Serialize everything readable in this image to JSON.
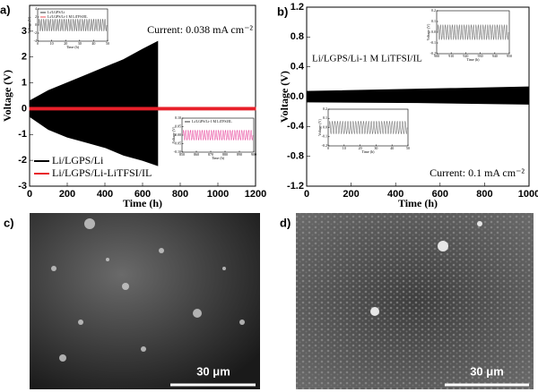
{
  "chart_data": [
    {
      "type": "band",
      "panel": "a)",
      "xlabel": "Time (h)",
      "ylabel": "Voltage (V)",
      "xlim": [
        0,
        1200
      ],
      "ylim": [
        -3,
        4
      ],
      "xticks": [
        0,
        200,
        400,
        600,
        800,
        1000,
        1200
      ],
      "yticks": [
        -3,
        -2,
        -1,
        0,
        1,
        2,
        3
      ],
      "annotation": "Current: 0.038 mA cm⁻²",
      "legend": "lower left",
      "series": [
        {
          "name": "Li/LGPS/Li",
          "color": "#000000",
          "x": [
            0,
            100,
            200,
            300,
            400,
            500,
            600,
            680
          ],
          "values": [
            0.3,
            0.7,
            1.0,
            1.3,
            1.6,
            1.9,
            2.3,
            2.6
          ],
          "lower": [
            -0.3,
            -0.8,
            -1.1,
            -1.3,
            -1.5,
            -1.8,
            -2.0,
            -2.2
          ]
        },
        {
          "name": "Li/LGPS/Li-LiTFSI/IL",
          "color": "#e8202a",
          "x": [
            0,
            1200
          ],
          "values": [
            0.05,
            0.05
          ],
          "lower": [
            -0.05,
            -0.05
          ]
        }
      ],
      "insets": [
        {
          "labels": [
            "Li/LGPS/Li",
            "Li/LGPS/Li-1 M LiTFSI/IL"
          ],
          "xlabel": "Time (h)",
          "ylabel": "Voltage (V)",
          "xlim": [
            0,
            50
          ],
          "xticks": [
            0,
            10,
            20,
            30,
            40,
            50
          ],
          "ylim": [
            -4,
            4
          ],
          "yticks": [
            -4,
            -2,
            0,
            2,
            4
          ],
          "amplitude": 1.5,
          "color": "#555555"
        },
        {
          "labels": [
            "Li/LGPS/Li-1 M LiTFSI/IL"
          ],
          "xlabel": "Time (h)",
          "ylabel": "Voltage (V)",
          "xlim": [
            850,
            900
          ],
          "xticks": [
            850,
            860,
            870,
            880,
            890,
            900
          ],
          "ylim": [
            -0.1,
            0.1
          ],
          "yticks": [
            {
              "value": -0.1,
              "label": "-0.10"
            },
            -0.05,
            {
              "value": 0,
              "label": "0.00"
            },
            0.05,
            {
              "value": 0.1,
              "label": "0.10"
            }
          ],
          "amplitude": 0.03,
          "color": "#e8409a"
        }
      ]
    },
    {
      "type": "band",
      "panel": "b)",
      "xlabel": "Time (h)",
      "ylabel": "Voltage (V)",
      "xlim": [
        0,
        1000
      ],
      "ylim": [
        -1.2,
        1.2
      ],
      "xticks": [
        0,
        200,
        400,
        600,
        800,
        1000
      ],
      "yticks": [
        {
          "value": -1.2,
          "label": "-1.2"
        },
        {
          "value": -0.8,
          "label": "-0.8"
        },
        {
          "value": -0.4,
          "label": "-0.4"
        },
        {
          "value": 0,
          "label": "0.0"
        },
        0.4,
        0.8,
        1.2
      ],
      "annotation": "Current: 0.1 mA cm⁻²",
      "note": "Li/LGPS/Li-1 M LiTFSI/IL",
      "series": [
        {
          "name": "",
          "color": "#000000",
          "x": [
            0,
            500,
            1000
          ],
          "values": [
            0.07,
            0.1,
            0.13
          ],
          "lower": [
            -0.07,
            -0.08,
            -0.1
          ]
        }
      ],
      "insets": [
        {
          "labels": [],
          "xlabel": "Time (h)",
          "ylabel": "Voltage (V)",
          "xlim": [
            900,
            950
          ],
          "xticks": [
            900,
            910,
            920,
            930,
            940,
            950
          ],
          "ylim": [
            -0.2,
            0.2
          ],
          "yticks": [
            -0.2,
            -0.1,
            {
              "value": 0,
              "label": "0.0"
            },
            0.1,
            0.2
          ],
          "amplitude": 0.07,
          "color": "#666666"
        },
        {
          "labels": [],
          "xlabel": "Time (h)",
          "ylabel": "Voltage (V)",
          "xlim": [
            0,
            50
          ],
          "xticks": [
            0,
            10,
            20,
            30,
            40,
            50
          ],
          "ylim": [
            -0.2,
            0.2
          ],
          "yticks": [
            -0.2,
            -0.1,
            {
              "value": 0,
              "label": "0.0"
            },
            0.1,
            0.2
          ],
          "amplitude": 0.07,
          "color": "#666666"
        }
      ]
    }
  ],
  "images": [
    {
      "panel": "c)",
      "scale": "30 μm"
    },
    {
      "panel": "d)",
      "scale": "30 μm"
    }
  ]
}
